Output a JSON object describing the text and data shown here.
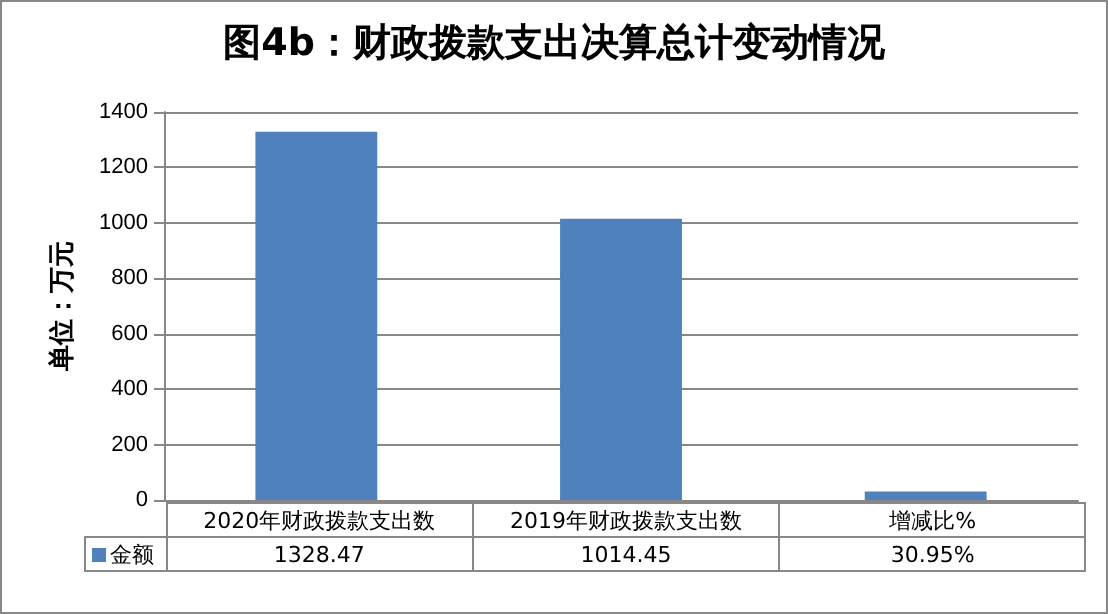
{
  "chart_data": {
    "type": "bar",
    "title": "图4b：财政拨款支出决算总计变动情况",
    "ylabel": "单位：万元",
    "categories": [
      "2020年财政拨款支出数",
      "2019年财政拨款支出数",
      "增减比%"
    ],
    "series": [
      {
        "name": "金额",
        "color": "#4f81bd",
        "values": [
          1328.47,
          1014.45,
          30.95
        ],
        "value_labels": [
          "1328.47",
          "1014.45",
          "30.95%"
        ]
      }
    ],
    "ylim": [
      0,
      1400
    ],
    "yticks": [
      0,
      200,
      400,
      600,
      800,
      1000,
      1200,
      1400
    ],
    "grid": "y",
    "legend": "bottom left"
  }
}
